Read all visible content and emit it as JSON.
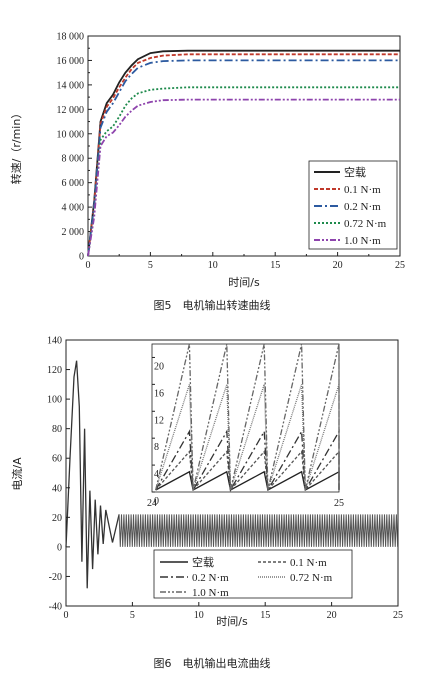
{
  "chart_data": [
    {
      "type": "line",
      "caption": "图5　电机输出转速曲线",
      "xlabel": "时间/s",
      "ylabel": "转速/（r/min）",
      "xlim": [
        0,
        25
      ],
      "ylim": [
        0,
        18000
      ],
      "x_ticks": [
        "0",
        "5",
        "10",
        "15",
        "20",
        "25"
      ],
      "y_ticks": [
        "0",
        "2 000",
        "4 000",
        "6 000",
        "8 000",
        "10 000",
        "12 000",
        "14 000",
        "16 000",
        "18 000"
      ],
      "grid": false,
      "legend_position": "bottom-right",
      "series": [
        {
          "name": "空载",
          "color": "#222222",
          "dash": "",
          "x": [
            0,
            0.5,
            1,
            1.5,
            2,
            2.5,
            3,
            3.5,
            4,
            5,
            6,
            8,
            10,
            25
          ],
          "values": [
            0,
            4500,
            11000,
            12500,
            13200,
            14200,
            15000,
            15600,
            16100,
            16600,
            16750,
            16800,
            16800,
            16800
          ]
        },
        {
          "name": "0.1 N·m",
          "color": "#c0392b",
          "dash": "4,2",
          "x": [
            0,
            0.5,
            1,
            1.5,
            2,
            2.5,
            3,
            3.5,
            4,
            5,
            6,
            8,
            10,
            25
          ],
          "values": [
            0,
            4300,
            10800,
            12200,
            12900,
            13800,
            14600,
            15300,
            15800,
            16200,
            16400,
            16500,
            16500,
            16500
          ]
        },
        {
          "name": "0.2 N·m",
          "color": "#2c5aa0",
          "dash": "8,3,2,3",
          "x": [
            0,
            0.5,
            1,
            1.5,
            2,
            2.5,
            3,
            3.5,
            4,
            5,
            6,
            8,
            10,
            25
          ],
          "values": [
            0,
            4200,
            10500,
            11800,
            12500,
            13400,
            14300,
            14900,
            15400,
            15800,
            15950,
            16000,
            16000,
            16000
          ]
        },
        {
          "name": "0.72 N·m",
          "color": "#1e8a4c",
          "dash": "2,2",
          "x": [
            0,
            0.5,
            1,
            1.5,
            2,
            2.5,
            3,
            3.5,
            4,
            5,
            6,
            8,
            10,
            25
          ],
          "values": [
            0,
            3500,
            9500,
            10200,
            10600,
            11400,
            12300,
            12900,
            13300,
            13600,
            13700,
            13800,
            13800,
            13800
          ]
        },
        {
          "name": "1.0 N·m",
          "color": "#8e44ad",
          "dash": "6,2,2,2,2,2",
          "x": [
            0,
            0.5,
            1,
            1.5,
            2,
            2.5,
            3,
            3.5,
            4,
            5,
            6,
            8,
            10,
            25
          ],
          "values": [
            0,
            3200,
            9000,
            9800,
            10100,
            10700,
            11400,
            11900,
            12300,
            12600,
            12750,
            12800,
            12800,
            12800
          ]
        }
      ]
    },
    {
      "type": "line",
      "caption": "图6　电机输出电流曲线",
      "xlabel": "时间/s",
      "ylabel": "电流/A",
      "xlim": [
        0,
        25
      ],
      "ylim": [
        -40,
        140
      ],
      "x_ticks": [
        "0",
        "5",
        "10",
        "15",
        "20",
        "25"
      ],
      "y_ticks": [
        "-40",
        "-20",
        "0",
        "20",
        "40",
        "60",
        "80",
        "100",
        "120",
        "140"
      ],
      "grid": false,
      "legend_position": "bottom",
      "oscillation_band": [
        0,
        22
      ],
      "series": [
        {
          "name": "空载",
          "color": "#222222",
          "dash": ""
        },
        {
          "name": "0.1 N·m",
          "color": "#555555",
          "dash": "3,2"
        },
        {
          "name": "0.2 N·m",
          "color": "#333333",
          "dash": "8,3,2,3"
        },
        {
          "name": "0.72 N·m",
          "color": "#777777",
          "dash": "1,1"
        },
        {
          "name": "1.0 N·m",
          "color": "#666666",
          "dash": "6,2,2,2,2,2"
        }
      ],
      "transient": {
        "x": [
          0,
          0.3,
          0.6,
          0.8,
          1.0,
          1.2,
          1.4,
          1.6,
          1.8,
          2.0,
          2.2,
          2.4,
          2.6,
          2.8,
          3.0,
          3.5,
          4.0
        ],
        "values": [
          0,
          60,
          115,
          126,
          95,
          -10,
          80,
          -28,
          38,
          -15,
          32,
          -5,
          28,
          2,
          25,
          3,
          22
        ]
      },
      "inset": {
        "xlim": [
          24,
          25
        ],
        "ylim": [
          0,
          22
        ],
        "x_ticks": [
          "24",
          "25"
        ],
        "y_ticks": [
          "0",
          "4",
          "8",
          "12",
          "16",
          "20"
        ]
      }
    }
  ]
}
